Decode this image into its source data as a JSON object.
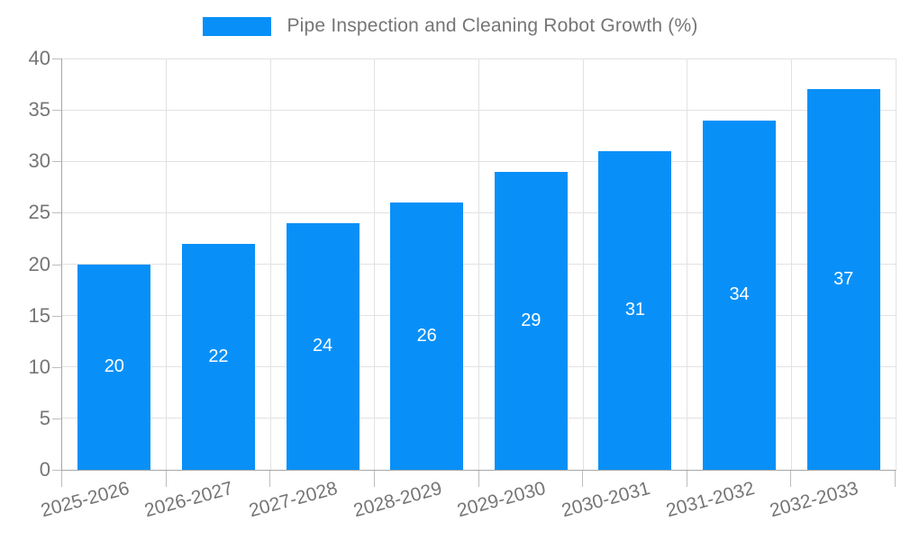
{
  "legend": {
    "label": "Pipe Inspection and Cleaning Robot Growth (%)"
  },
  "chart_data": {
    "type": "bar",
    "title": "Pipe Inspection and Cleaning Robot Growth (%)",
    "categories": [
      "2025-2026",
      "2026-2027",
      "2027-2028",
      "2028-2029",
      "2029-2030",
      "2030-2031",
      "2031-2032",
      "2032-2033"
    ],
    "values": [
      20,
      22,
      24,
      26,
      29,
      31,
      34,
      37
    ],
    "xlabel": "",
    "ylabel": "",
    "ylim": [
      0,
      40
    ],
    "yticks": [
      0,
      5,
      10,
      15,
      20,
      25,
      30,
      35,
      40
    ],
    "grid": true,
    "value_labels": "centered-inside-bars",
    "legend_position": "top-center",
    "colors": {
      "bar": "#0890f8",
      "bar_label": "#ffffff",
      "text": "#757575",
      "axis": "#a6a6a6",
      "grid": "#e2e2e2",
      "tick": "#bdbdbd",
      "background": "#ffffff"
    }
  }
}
